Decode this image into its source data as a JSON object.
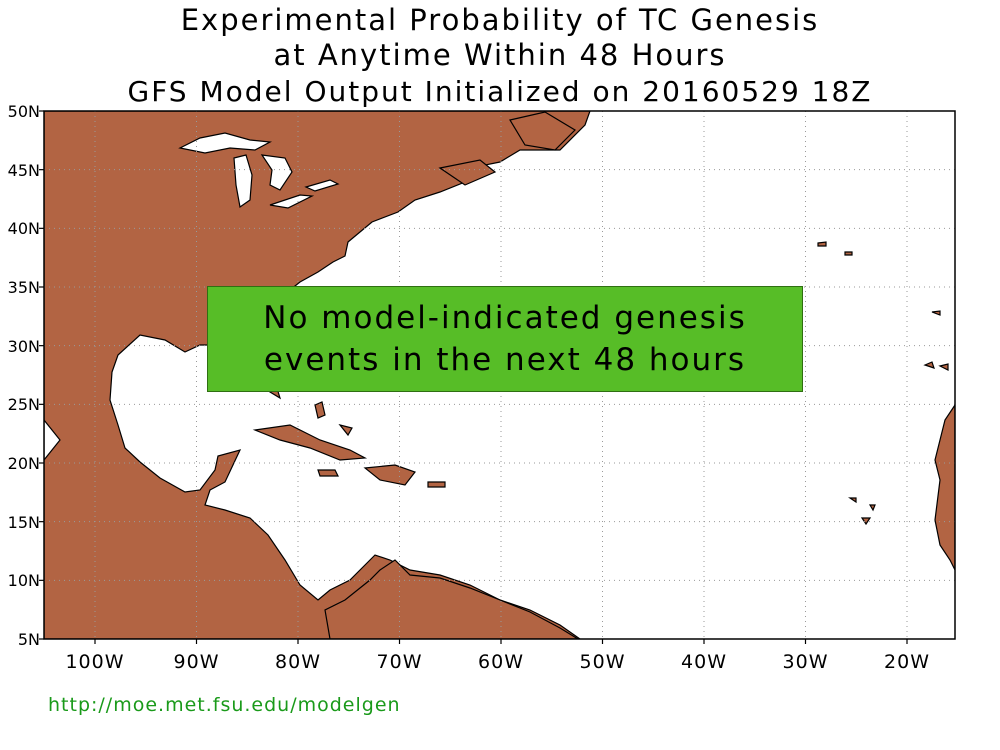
{
  "header": {
    "title_line1": "Experimental Probability of TC Genesis",
    "title_line2": "at Anytime Within 48 Hours",
    "title_line3": "GFS Model Output Initialized on 20160529 18Z"
  },
  "map": {
    "lat_labels": [
      "50N",
      "45N",
      "40N",
      "35N",
      "30N",
      "25N",
      "20N",
      "15N",
      "10N",
      "5N"
    ],
    "lon_labels": [
      "100W",
      "90W",
      "80W",
      "70W",
      "60W",
      "50W",
      "40W",
      "30W",
      "20W"
    ],
    "land_color": "#b26443",
    "ocean_color": "#ffffff",
    "grid": "dotted"
  },
  "message": {
    "line1": "No model-indicated genesis",
    "line2": "events in the next 48 hours",
    "color": "#57bd27"
  },
  "footer": {
    "url": "http://moe.met.fsu.edu/modelgen",
    "url_color": "#1a9a1a"
  }
}
